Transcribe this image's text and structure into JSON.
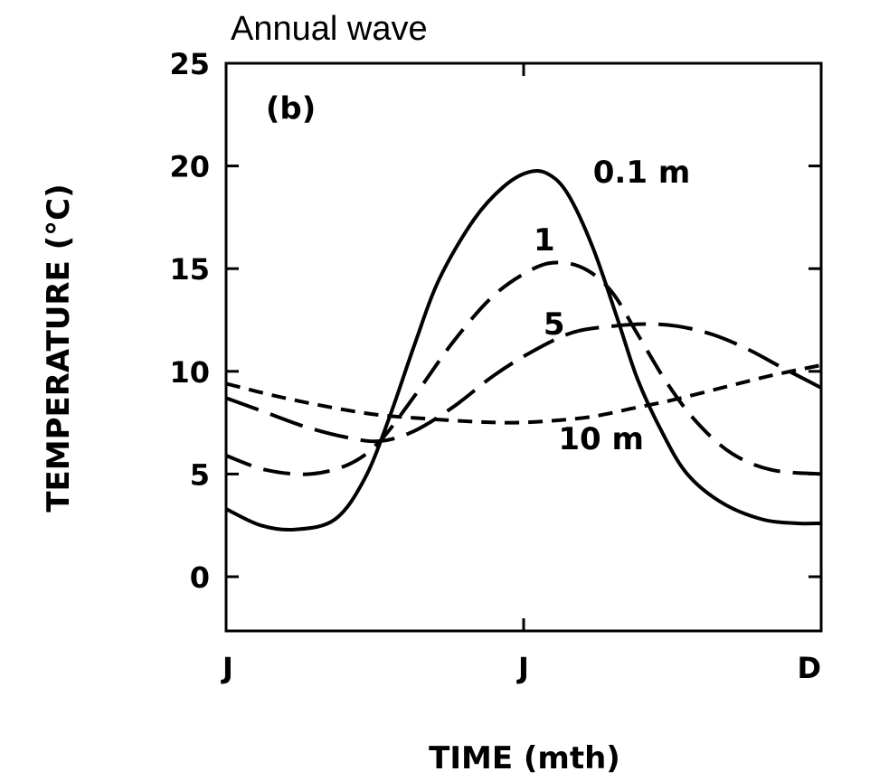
{
  "chart_data": {
    "type": "line",
    "title": "Annual wave",
    "panel_label": "(b)",
    "xlabel": "TIME (mth)",
    "ylabel": "TEMPERATURE (°C)",
    "xlim": [
      0,
      12
    ],
    "ylim": [
      -2.6,
      25
    ],
    "xticks": [
      {
        "value": 0,
        "label": "J"
      },
      {
        "value": 6,
        "label": "J"
      },
      {
        "value": 12,
        "label": "D"
      }
    ],
    "yticks": [
      {
        "value": 0,
        "label": "0"
      },
      {
        "value": 5,
        "label": "5"
      },
      {
        "value": 10,
        "label": "10"
      },
      {
        "value": 15,
        "label": "15"
      },
      {
        "value": 20,
        "label": "20"
      },
      {
        "value": 25,
        "label": "25"
      }
    ],
    "series": [
      {
        "name": "0.1 m",
        "style": "solid",
        "x": [
          0,
          0.7,
          1.4,
          2.2,
          2.8,
          3.3,
          3.8,
          4.3,
          5.0,
          5.6,
          6.1,
          6.5,
          6.9,
          7.4,
          7.9,
          8.3,
          8.8,
          9.3,
          10.0,
          10.8,
          11.5,
          12
        ],
        "y": [
          3.3,
          2.5,
          2.3,
          2.8,
          4.8,
          7.8,
          11.3,
          14.5,
          17.4,
          19.0,
          19.7,
          19.6,
          18.6,
          16.0,
          12.5,
          9.6,
          7.0,
          5.0,
          3.6,
          2.8,
          2.6,
          2.6
        ]
      },
      {
        "name": "1",
        "style": "dashed",
        "x": [
          0,
          0.8,
          1.7,
          2.5,
          3.1,
          3.8,
          4.6,
          5.4,
          6.2,
          6.75,
          7.3,
          7.8,
          8.3,
          8.9,
          9.5,
          10.2,
          11.0,
          12
        ],
        "y": [
          5.9,
          5.2,
          5.0,
          5.5,
          6.6,
          8.8,
          11.5,
          13.7,
          15.0,
          15.3,
          14.9,
          13.8,
          11.8,
          9.4,
          7.5,
          6.0,
          5.2,
          5.0
        ]
      },
      {
        "name": "5",
        "style": "longdash",
        "x": [
          0,
          0.8,
          1.6,
          2.4,
          3.1,
          3.8,
          4.6,
          5.4,
          6.2,
          7.0,
          7.8,
          8.5,
          9.1,
          9.8,
          10.5,
          11.2,
          12
        ],
        "y": [
          8.7,
          8.0,
          7.3,
          6.8,
          6.6,
          7.1,
          8.3,
          9.8,
          11.0,
          11.9,
          12.2,
          12.3,
          12.2,
          11.8,
          11.1,
          10.2,
          9.2
        ]
      },
      {
        "name": "10 m",
        "style": "shortdash",
        "x": [
          0,
          1.0,
          2.0,
          3.0,
          4.0,
          5.0,
          5.8,
          6.6,
          7.4,
          8.2,
          9.0,
          10.0,
          11.0,
          12
        ],
        "y": [
          9.4,
          8.8,
          8.3,
          7.9,
          7.7,
          7.55,
          7.5,
          7.6,
          7.8,
          8.2,
          8.6,
          9.2,
          9.8,
          10.3
        ]
      }
    ],
    "annotations": [
      {
        "text": "(b)",
        "x": 0.8,
        "y": 22.3
      },
      {
        "text": "0.1 m",
        "x": 7.4,
        "y": 19.2
      },
      {
        "text": "1",
        "x": 6.2,
        "y": 15.9
      },
      {
        "text": "5",
        "x": 6.4,
        "y": 11.8
      },
      {
        "text": "10 m",
        "x": 6.7,
        "y": 6.2
      }
    ]
  }
}
